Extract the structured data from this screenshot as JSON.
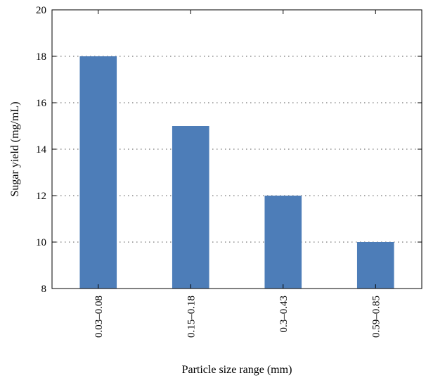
{
  "chart_data": {
    "type": "bar",
    "categories": [
      "0.03–0.08",
      "0.15–0.18",
      "0.3–0.43",
      "0.59–0.85"
    ],
    "values": [
      18,
      15,
      12,
      10
    ],
    "title": "",
    "xlabel": "Particle size range (mm)",
    "ylabel": "Sugar yield (mg/mL)",
    "ylim": [
      8,
      20
    ],
    "yticks": [
      8,
      10,
      12,
      14,
      16,
      18,
      20
    ],
    "grid": "horizontal dotted",
    "bar_color": "#4d7db8"
  }
}
